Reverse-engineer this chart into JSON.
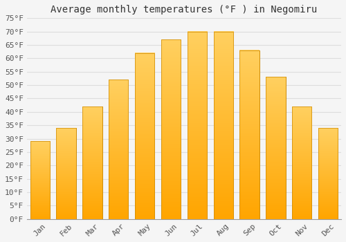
{
  "title": "Average monthly temperatures (°F ) in Negomiru",
  "months": [
    "Jan",
    "Feb",
    "Mar",
    "Apr",
    "May",
    "Jun",
    "Jul",
    "Aug",
    "Sep",
    "Oct",
    "Nov",
    "Dec"
  ],
  "values": [
    29,
    34,
    42,
    52,
    62,
    67,
    70,
    70,
    63,
    53,
    42,
    34
  ],
  "bar_color_bottom": "#FFA500",
  "bar_color_top": "#FFD060",
  "bar_edge_color": "#CC8800",
  "ylim": [
    0,
    75
  ],
  "yticks": [
    0,
    5,
    10,
    15,
    20,
    25,
    30,
    35,
    40,
    45,
    50,
    55,
    60,
    65,
    70,
    75
  ],
  "ylabel_suffix": "°F",
  "background_color": "#f5f5f5",
  "plot_bg_color": "#f5f5f5",
  "grid_color": "#dddddd",
  "title_fontsize": 10,
  "tick_fontsize": 8,
  "font_family": "monospace"
}
